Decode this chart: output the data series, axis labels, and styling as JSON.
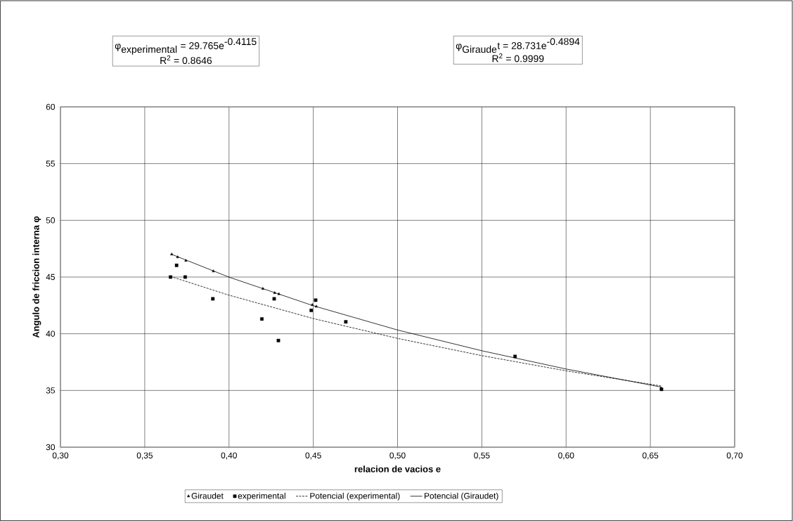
{
  "chart_data": {
    "type": "scatter",
    "xlabel": "relacion de vacios e",
    "ylabel": "Angulo de friccion interna φ",
    "annotations": [
      "\\mbox{φ}_{\\mbox{experimental}}\\mbox{ = 29.765e}^{\\mbox{-0.4115}}",
      "R$^{2}$ = 0.8646",
      "\\mbox{φ}_{\\mbox{Giraude}}\\mbox{t = 28.731e}^{\\mbox{-0.4894}}",
      "R$^{2}$ = 0.9999"
    ],
    "xlim": [
      0.3,
      0.7
    ],
    "xticks": [
      {
        "value": 0.3,
        "label": "0,30"
      },
      {
        "value": 0.35,
        "label": "0,35"
      },
      {
        "value": 0.4,
        "label": "0,40"
      },
      {
        "value": 0.45,
        "label": "0,45"
      },
      {
        "value": 0.5,
        "label": "0,50"
      },
      {
        "value": 0.55,
        "label": "0,55"
      },
      {
        "value": 0.6,
        "label": "0,60"
      },
      {
        "value": 0.65,
        "label": "0,65"
      },
      {
        "value": 0.7,
        "label": "0,70"
      }
    ],
    "ylim": [
      30,
      60
    ],
    "yticks": [
      30,
      35,
      40,
      45,
      50,
      55,
      60
    ],
    "grid": true,
    "legend": "bottom",
    "series": [
      {
        "name": "Giraudet",
        "marker": "triangle",
        "color": "#000000",
        "x": [
          0.366,
          0.3695,
          0.3744,
          0.3907,
          0.4201,
          0.4271,
          0.4296,
          0.4494,
          0.4518,
          0.6564
        ],
        "values": [
          47.0,
          46.75,
          46.44,
          45.51,
          43.97,
          43.6,
          43.5,
          42.54,
          42.4,
          35.2
        ]
      },
      {
        "name": "experimental",
        "marker": "square",
        "color": "#000000",
        "x": [
          0.3653,
          0.3689,
          0.374,
          0.3904,
          0.4195,
          0.4268,
          0.4293,
          0.4488,
          0.4514,
          0.4693,
          0.5697,
          0.6566
        ],
        "values": [
          45.0,
          46.03,
          45.0,
          43.08,
          41.3,
          43.08,
          39.4,
          42.06,
          42.96,
          41.05,
          38.0,
          35.1
        ]
      },
      {
        "name": "Potencial (experimental)",
        "type": "line",
        "line_style": "dashed",
        "marker": "none",
        "color": "#000000",
        "x": [
          0.3653,
          0.4,
          0.45,
          0.5,
          0.55,
          0.6,
          0.6566
        ],
        "values": [
          45.05,
          43.4,
          41.34,
          39.59,
          38.07,
          36.73,
          35.39
        ]
      },
      {
        "name": "Potencial (Giraudet)",
        "type": "line",
        "line_style": "solid",
        "marker": "none",
        "color": "#000000",
        "x": [
          0.366,
          0.4,
          0.45,
          0.5,
          0.55,
          0.6,
          0.6564
        ],
        "values": [
          47.0,
          44.99,
          42.47,
          40.33,
          38.5,
          36.89,
          35.3
        ]
      }
    ]
  }
}
